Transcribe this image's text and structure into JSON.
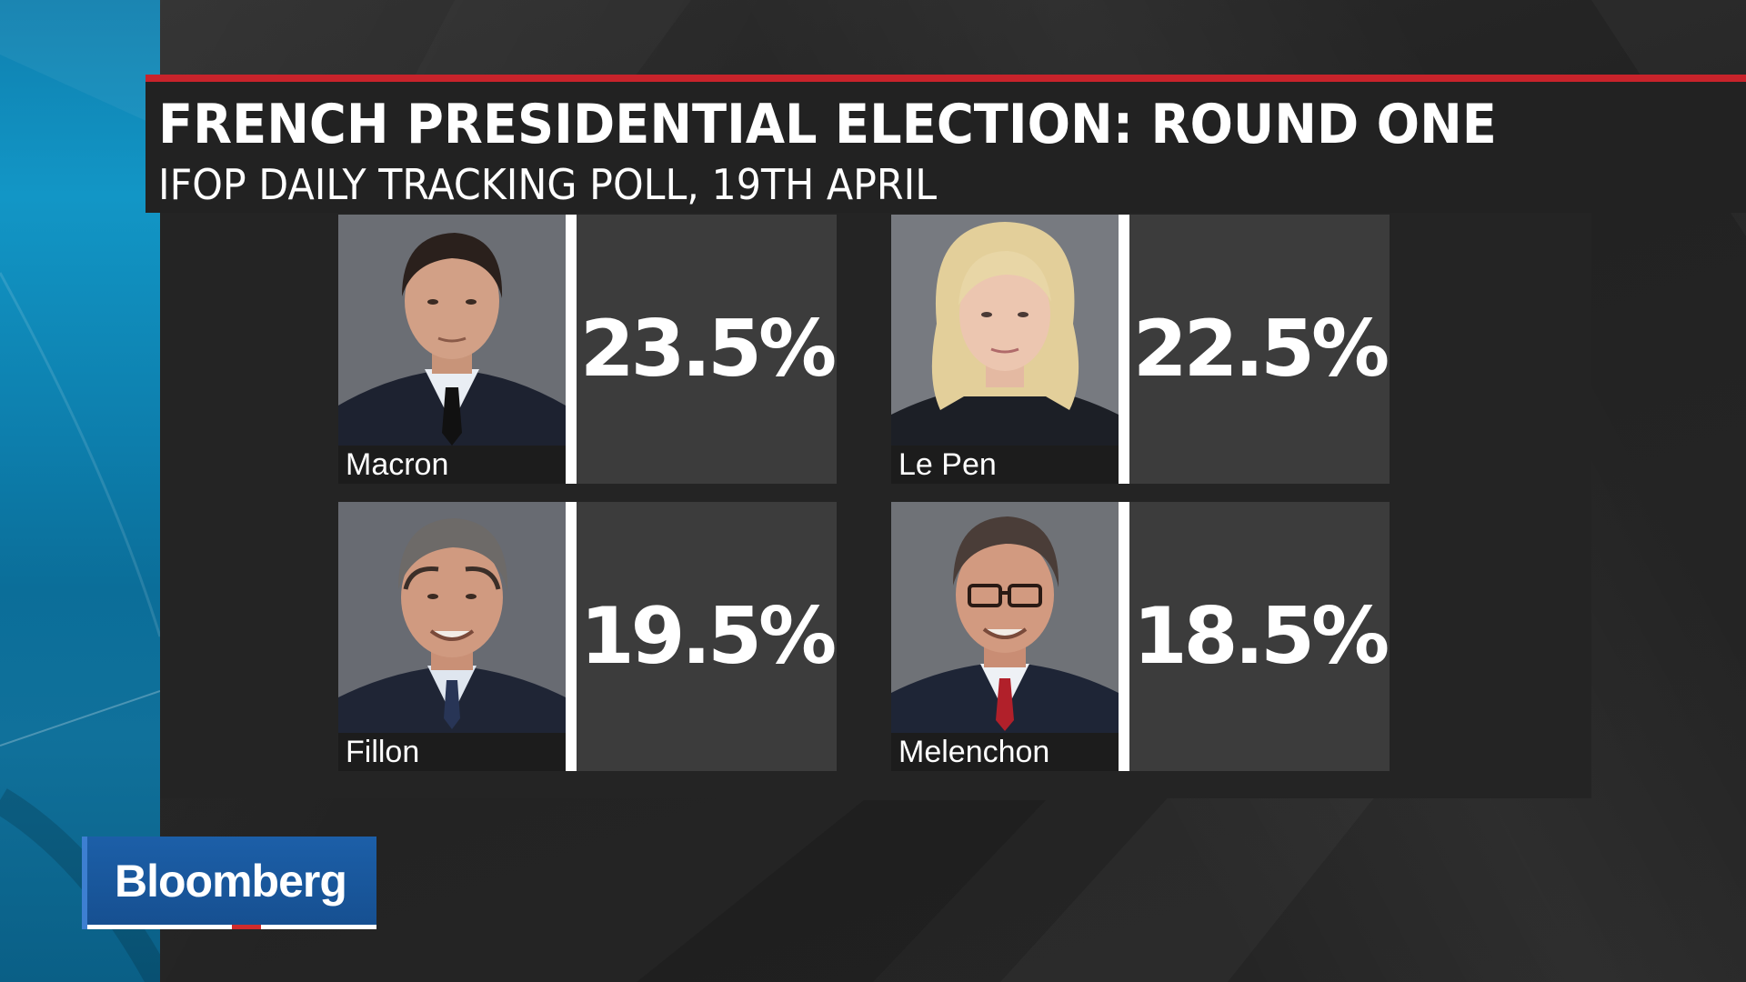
{
  "header": {
    "title": "FRENCH PRESIDENTIAL ELECTION: ROUND ONE",
    "subtitle": "IFOP DAILY TRACKING POLL, 19TH APRIL"
  },
  "candidates": [
    {
      "name": "Macron",
      "value": "23.5%"
    },
    {
      "name": "Le Pen",
      "value": "22.5%"
    },
    {
      "name": "Fillon",
      "value": "19.5%"
    },
    {
      "name": "Melenchon",
      "value": "18.5%"
    }
  ],
  "logo": {
    "text": "Bloomberg"
  },
  "colors": {
    "accent_red": "#c8232b",
    "brand_blue": "#1c5fa8",
    "panel": "#242424",
    "value_box": "#3c3c3c"
  }
}
